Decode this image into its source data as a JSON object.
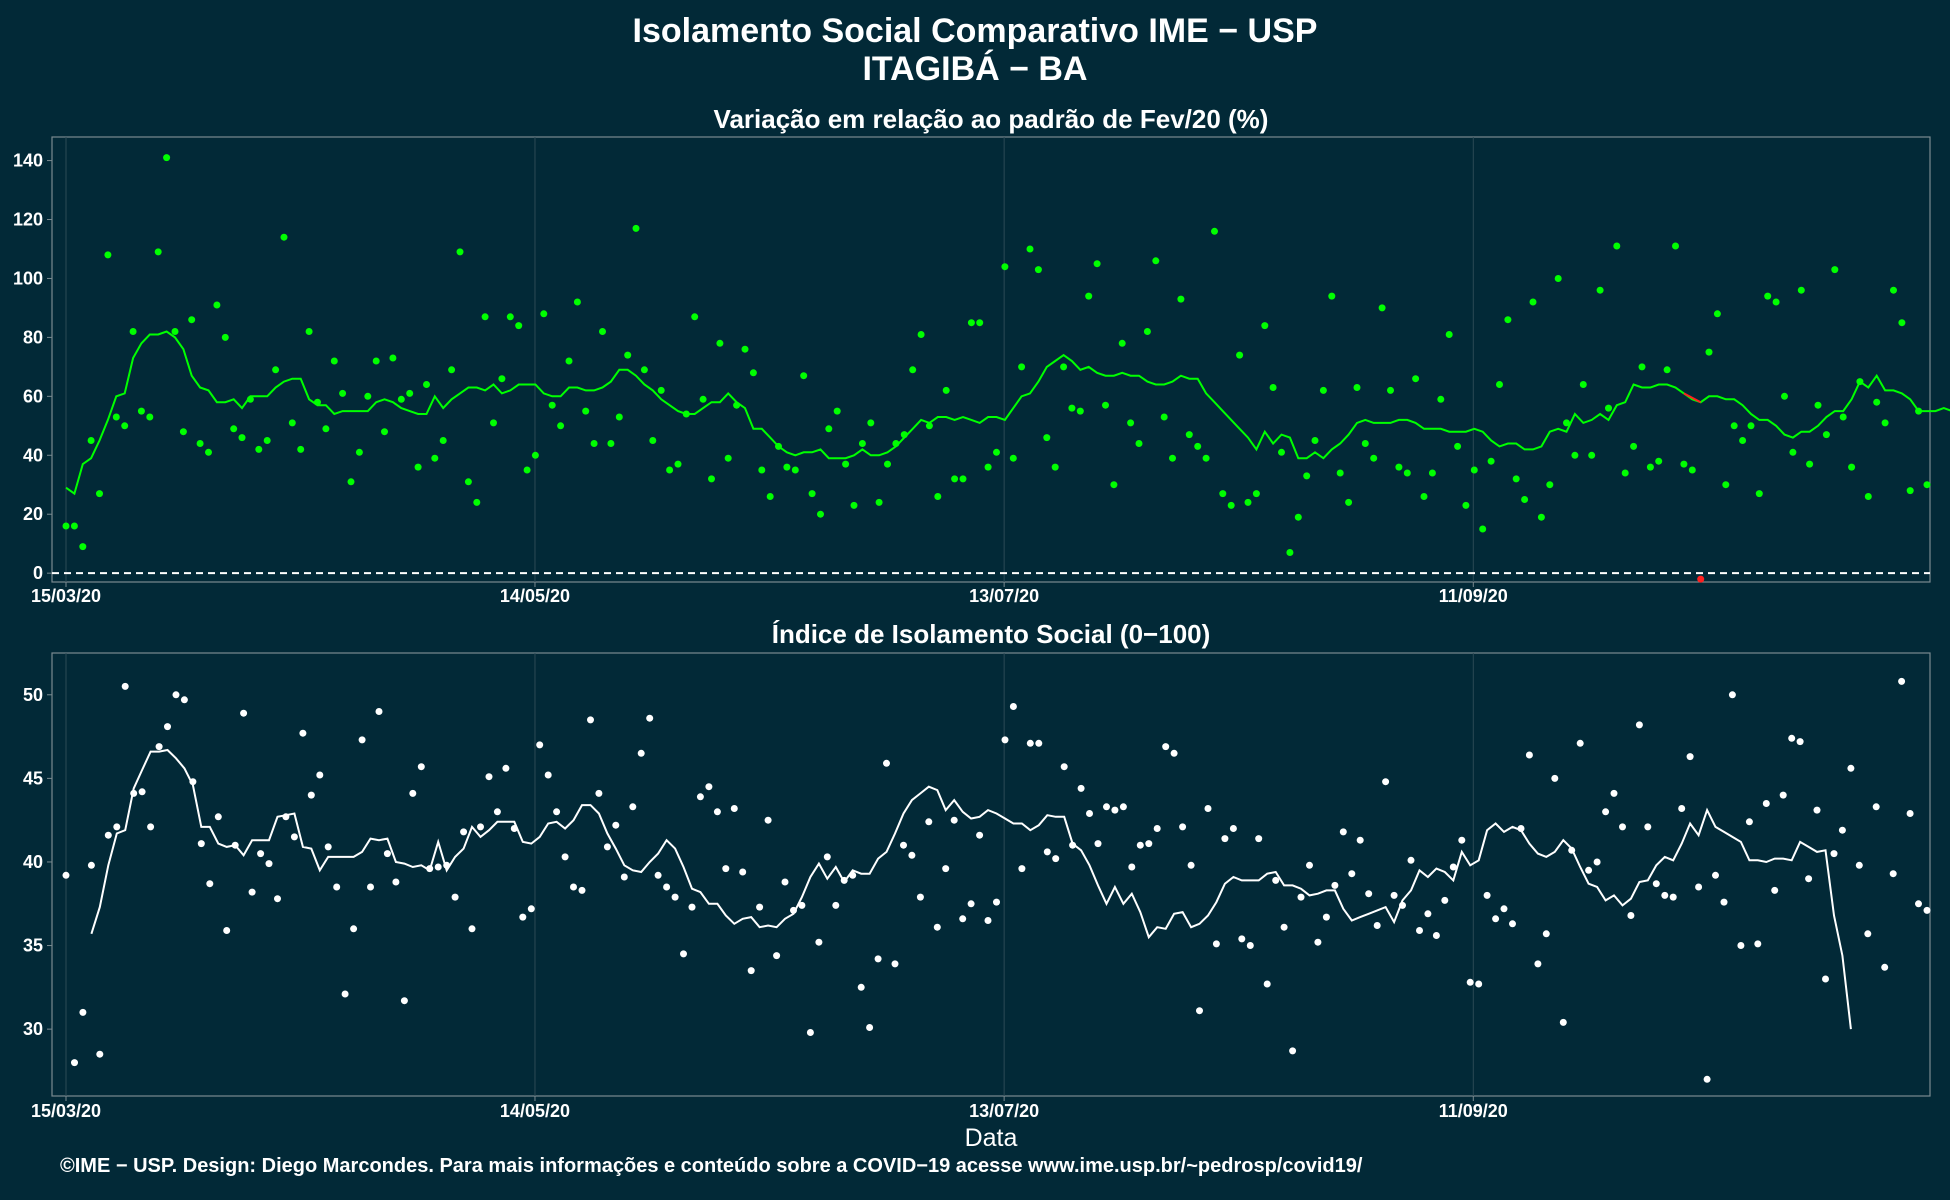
{
  "title": {
    "line1": "Isolamento Social Comparativo IME − USP",
    "line2": "ITAGIBÁ − BA"
  },
  "footer": "©IME − USP. Design: Diego Marcondes. Para mais informações e conteúdo sobre a COVID−19 acesse www.ime.usp.br/~pedrosp/covid19/",
  "colors": {
    "background": "#022937",
    "panel_border": "#7a8a90",
    "grid": "#2c4a55",
    "top_series": "#00ff00",
    "negative_point": "#ff2020",
    "bottom_series": "#ffffff"
  },
  "chart_data": [
    {
      "type": "scatter",
      "title": "Variação em relação ao padrão de Fev/20 (%)",
      "xlabel": "",
      "ylabel": "",
      "x_ticks": [
        "15/03/20",
        "14/05/20",
        "13/07/20",
        "11/09/20"
      ],
      "y_ticks": [
        0,
        20,
        40,
        60,
        80,
        100,
        120,
        140
      ],
      "ylim": [
        -3,
        148
      ],
      "reference_line": 0,
      "points": [
        16,
        16,
        9,
        45,
        27,
        108,
        53,
        50,
        82,
        55,
        53,
        109,
        141,
        82,
        48,
        86,
        44,
        41,
        91,
        80,
        49,
        46,
        59,
        42,
        45,
        69,
        114,
        51,
        42,
        82,
        58,
        49,
        72,
        61,
        31,
        41,
        60,
        72,
        48,
        73,
        59,
        61,
        36,
        64,
        39,
        45,
        69,
        109,
        31,
        24,
        87,
        51,
        66,
        87,
        84,
        35,
        40,
        88,
        57,
        50,
        72,
        92,
        55,
        44,
        82,
        44,
        53,
        74,
        117,
        69,
        45,
        62,
        35,
        37,
        54,
        87,
        59,
        32,
        78,
        39,
        57,
        76,
        68,
        35,
        26,
        43,
        36,
        35,
        67,
        27,
        20,
        49,
        55,
        37,
        23,
        44,
        51,
        24,
        37,
        44,
        47,
        69,
        81,
        50,
        26,
        62,
        32,
        32,
        85,
        85,
        36,
        41,
        104,
        39,
        70,
        110,
        103,
        46,
        36,
        70,
        56,
        55,
        94,
        105,
        57,
        30,
        78,
        51,
        44,
        82,
        106,
        53,
        39,
        93,
        47,
        43,
        39,
        116,
        27,
        23,
        74,
        24,
        27,
        84,
        63,
        41,
        7,
        19,
        33,
        45,
        62,
        94,
        34,
        24,
        63,
        44,
        39,
        90,
        62,
        36,
        34,
        66,
        26,
        34,
        59,
        81,
        43,
        23,
        35,
        15,
        38,
        64,
        86,
        32,
        25,
        92,
        19,
        30,
        100,
        51,
        40,
        64,
        40,
        96,
        56,
        111,
        34,
        43,
        70,
        36,
        38,
        69,
        111,
        37,
        35,
        -2,
        75,
        88,
        30,
        50,
        45,
        50,
        27,
        94,
        92,
        60,
        41,
        96,
        37,
        57,
        47,
        103,
        53,
        36,
        65,
        26,
        58,
        51,
        96,
        85,
        28,
        55,
        30
      ],
      "moving_average": [
        29,
        27,
        37,
        39,
        45,
        52,
        60,
        61,
        73,
        78,
        81,
        81,
        82,
        80,
        76,
        67,
        63,
        62,
        58,
        58,
        59,
        56,
        60,
        60,
        60,
        63,
        65,
        66,
        66,
        59,
        57,
        57,
        54,
        55,
        55,
        55,
        55,
        58,
        59,
        58,
        56,
        55,
        54,
        54,
        60,
        56,
        59,
        61,
        63,
        63,
        62,
        64,
        61,
        62,
        64,
        64,
        64,
        61,
        60,
        60,
        63,
        63,
        62,
        62,
        63,
        65,
        69,
        69,
        67,
        64,
        62,
        59,
        57,
        55,
        54,
        54,
        56,
        58,
        58,
        61,
        58,
        56,
        49,
        49,
        46,
        43,
        41,
        40,
        41,
        41,
        42,
        39,
        39,
        39,
        40,
        42,
        40,
        40,
        41,
        43,
        46,
        49,
        52,
        51,
        53,
        53,
        52,
        53,
        52,
        51,
        53,
        53,
        52,
        56,
        60,
        61,
        65,
        70,
        72,
        74,
        72,
        69,
        70,
        68,
        67,
        67,
        68,
        67,
        67,
        65,
        64,
        64,
        65,
        67,
        66,
        66,
        61,
        58,
        55,
        52,
        49,
        46,
        42,
        48,
        44,
        47,
        46,
        39,
        39,
        41,
        39,
        42,
        44,
        47,
        51,
        52,
        51,
        51,
        51,
        52,
        52,
        51,
        49,
        49,
        49,
        48,
        48,
        48,
        49,
        48,
        45,
        43,
        44,
        44,
        42,
        42,
        43,
        48,
        49,
        48,
        54,
        51,
        52,
        54,
        52,
        57,
        58,
        64,
        63,
        63,
        64,
        64,
        63,
        61,
        59,
        58,
        60,
        60,
        59,
        59,
        57,
        54,
        52,
        52,
        50,
        47,
        46,
        48,
        48,
        50,
        53,
        55,
        55,
        59,
        65,
        63,
        67,
        62,
        62,
        61,
        59,
        55,
        55,
        55,
        56,
        55,
        58,
        58,
        57,
        57
      ]
    },
    {
      "type": "scatter",
      "title": "Índice de Isolamento Social (0−100)",
      "xlabel": "Data",
      "ylabel": "",
      "x_ticks": [
        "15/03/20",
        "14/05/20",
        "13/07/20",
        "11/09/20"
      ],
      "y_ticks": [
        30,
        35,
        40,
        45,
        50
      ],
      "ylim": [
        26,
        52.5
      ],
      "points": [
        39.2,
        28,
        31,
        39.8,
        28.5,
        41.6,
        42.1,
        50.5,
        44.1,
        44.2,
        42.1,
        46.9,
        48.1,
        50,
        49.7,
        44.8,
        41.1,
        38.7,
        42.7,
        35.9,
        41,
        48.9,
        38.2,
        40.5,
        39.9,
        37.8,
        42.7,
        41.5,
        47.7,
        44,
        45.2,
        40.9,
        38.5,
        32.1,
        36,
        47.3,
        38.5,
        49,
        40.5,
        38.8,
        31.7,
        44.1,
        45.7,
        39.6,
        39.7,
        39.8,
        37.9,
        41.8,
        36,
        42.1,
        45.1,
        43,
        45.6,
        42,
        36.7,
        37.2,
        47,
        45.2,
        43,
        40.3,
        38.5,
        38.3,
        48.5,
        44.1,
        40.9,
        42.2,
        39.1,
        43.3,
        46.5,
        48.6,
        39.2,
        38.5,
        37.9,
        34.5,
        37.3,
        43.9,
        44.5,
        43,
        39.6,
        43.2,
        39.4,
        33.5,
        37.3,
        42.5,
        34.4,
        38.8,
        37.1,
        37.4,
        29.8,
        35.2,
        40.3,
        37.4,
        38.9,
        39.2,
        32.5,
        30.1,
        34.2,
        45.9,
        33.9,
        41,
        40.4,
        37.9,
        42.4,
        36.1,
        39.6,
        42.5,
        36.6,
        37.5,
        41.6,
        36.5,
        37.6,
        47.3,
        49.3,
        39.6,
        47.1,
        47.1,
        40.6,
        40.2,
        45.7,
        41,
        44.4,
        42.9,
        41.1,
        43.3,
        43.1,
        43.3,
        39.7,
        41,
        41.1,
        42,
        46.9,
        46.5,
        42.1,
        39.8,
        31.1,
        43.2,
        35.1,
        41.4,
        42,
        35.4,
        35,
        41.4,
        32.7,
        38.9,
        36.1,
        28.7,
        37.9,
        39.8,
        35.2,
        36.7,
        38.6,
        41.8,
        39.3,
        41.3,
        38.1,
        36.2,
        44.8,
        38,
        37.4,
        40.1,
        35.9,
        36.9,
        35.6,
        37.7,
        39.7,
        41.3,
        32.8,
        32.7,
        38,
        36.6,
        37.2,
        36.3,
        42,
        46.4,
        33.9,
        35.7,
        45,
        30.4,
        40.7,
        47.1,
        39.5,
        40,
        43,
        44.1,
        42.1,
        36.8,
        48.2,
        42.1,
        38.7,
        38,
        37.9,
        43.2,
        46.3,
        38.5,
        27,
        39.2,
        37.6,
        50,
        35,
        42.4,
        35.1,
        43.5,
        38.3,
        44,
        47.4,
        47.2,
        39,
        43.1,
        33,
        40.5,
        41.9,
        45.6,
        39.8,
        35.7,
        43.3,
        33.7,
        39.3,
        50.8,
        42.9,
        37.5,
        37.1
      ],
      "moving_average": [
        null,
        null,
        null,
        35.7,
        37.3,
        39.8,
        41.7,
        41.9,
        44.4,
        45.5,
        46.6,
        46.6,
        46.7,
        46.2,
        45.6,
        44.6,
        42.1,
        42.1,
        41.1,
        40.9,
        41,
        40.4,
        41.3,
        41.3,
        41.3,
        42.7,
        42.8,
        42.9,
        40.9,
        40.8,
        39.5,
        40.3,
        40.3,
        40.3,
        40.3,
        40.6,
        41.4,
        41.3,
        41.4,
        40,
        39.9,
        39.7,
        39.8,
        39.5,
        41.2,
        39.5,
        40.3,
        40.8,
        42.1,
        41.5,
        41.9,
        42.4,
        42.4,
        42.4,
        41.2,
        41.1,
        41.5,
        42.3,
        42.4,
        42,
        42.5,
        43.4,
        43.4,
        42.9,
        41.7,
        40.8,
        39.8,
        39.5,
        39.4,
        40,
        40.5,
        41.3,
        40.8,
        39.7,
        38.4,
        38.2,
        37.5,
        37.5,
        36.8,
        36.3,
        36.6,
        36.7,
        36.1,
        36.2,
        36.1,
        36.6,
        36.9,
        37.9,
        39.1,
        39.9,
        39,
        39.7,
        38.8,
        39.5,
        39.3,
        39.3,
        40.2,
        40.6,
        41.7,
        42.9,
        43.7,
        44.1,
        44.5,
        44.3,
        43.1,
        43.7,
        43,
        42.6,
        42.7,
        43.1,
        42.9,
        42.6,
        42.3,
        42.3,
        41.9,
        42.2,
        42.8,
        42.7,
        42.7,
        41.1,
        40.7,
        39.8,
        38.6,
        37.5,
        38.5,
        37.5,
        38.1,
        37,
        35.5,
        36.1,
        36,
        36.9,
        37,
        36.1,
        36.3,
        36.8,
        37.6,
        38.7,
        39.1,
        38.9,
        38.9,
        38.9,
        39.3,
        39.4,
        38.6,
        38.6,
        38.4,
        38,
        38.1,
        38.3,
        38.3,
        37.2,
        36.5,
        36.7,
        36.9,
        37.1,
        37.3,
        36.4,
        37.7,
        38.3,
        39.5,
        39.1,
        39.6,
        39.4,
        38.9,
        40.6,
        39.8,
        40.1,
        41.9,
        42.3,
        41.8,
        42.1,
        41.9,
        41.1,
        40.5,
        40.3,
        40.6,
        41.3,
        40.8,
        39.7,
        38.7,
        38.5,
        37.7,
        38,
        37.4,
        37.8,
        38.8,
        38.9,
        39.8,
        40.3,
        40.1,
        41.1,
        42.3,
        41.6,
        43.1,
        42.1,
        41.8,
        41.5,
        41.2,
        40.1,
        40.1,
        40,
        40.2,
        40.2,
        40.1,
        41.2,
        40.9,
        40.6,
        40.7,
        36.8,
        34.4,
        30
      ]
    }
  ]
}
